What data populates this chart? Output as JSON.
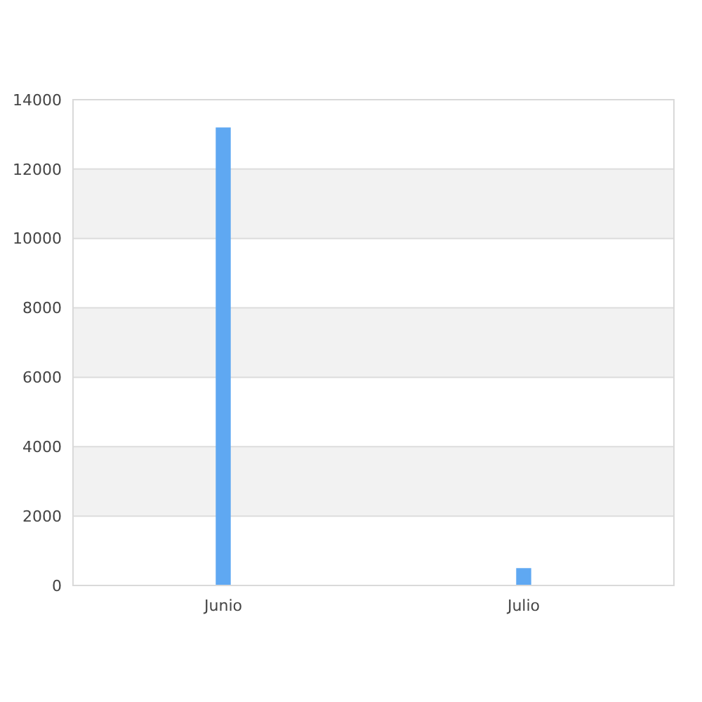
{
  "chart_data": {
    "type": "bar",
    "categories": [
      "Junio",
      "Julio"
    ],
    "values": [
      13200,
      500
    ],
    "color": "#5fa8f2",
    "ylim": [
      0,
      14000
    ],
    "yticks": [
      0,
      2000,
      4000,
      6000,
      8000,
      10000,
      12000,
      14000
    ],
    "grid": "y",
    "bands": [
      {
        "axis": "y",
        "from": 2000,
        "to": 4000,
        "color": "#f2f2f2"
      },
      {
        "axis": "y",
        "from": 6000,
        "to": 8000,
        "color": "#f2f2f2"
      },
      {
        "axis": "y",
        "from": 10000,
        "to": 12000,
        "color": "#f2f2f2"
      }
    ]
  }
}
